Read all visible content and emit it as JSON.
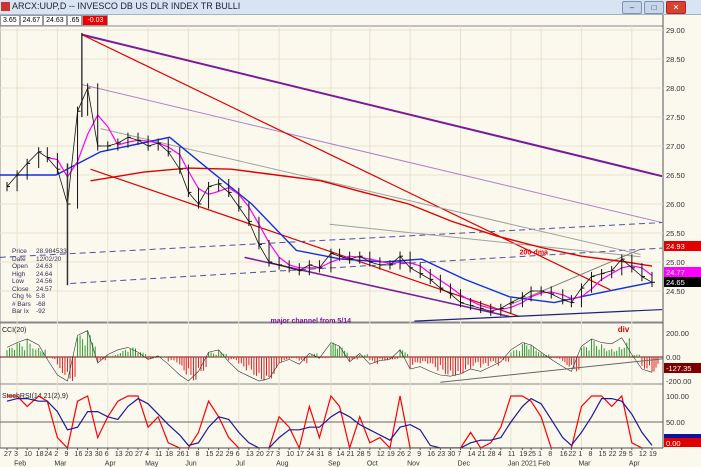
{
  "window": {
    "title": "ARCX:UUP,D -- INVESCO DB US DLR INDEX TR BULLI",
    "buttons": [
      "minimize",
      "maximize",
      "close"
    ]
  },
  "infobox": [
    "3.65",
    "24.67",
    "24.63",
    ".65",
    "-0.03"
  ],
  "readout": [
    {
      "label": "Price",
      "value": "28.984533"
    },
    {
      "label": "Date",
      "value": "12/02/20"
    },
    {
      "label": "Open",
      "value": "24.63"
    },
    {
      "label": "High",
      "value": "24.64"
    },
    {
      "label": "Low",
      "value": "24.56"
    },
    {
      "label": "Close",
      "value": "24.57"
    },
    {
      "label": "Chg %",
      "value": "5.8"
    },
    {
      "label": "# Bars",
      "value": "-68"
    },
    {
      "label": "Bar Ix",
      "value": "-92"
    }
  ],
  "chart_data": [
    {
      "type": "line",
      "panel": "price",
      "ylim": [
        24.0,
        29.0
      ],
      "yticks": [
        "29.00",
        "28.50",
        "28.00",
        "27.50",
        "27.00",
        "26.50",
        "26.00",
        "25.50",
        "25.00",
        "24.50"
      ],
      "grid": true,
      "dates": [
        "2020-01-27",
        "2020-02-03",
        "2020-02-10",
        "2020-02-18",
        "2020-02-24",
        "2020-03-02",
        "2020-03-09",
        "2020-03-16",
        "2020-03-23",
        "2020-03-30",
        "2020-04-06",
        "2020-04-13",
        "2020-04-20",
        "2020-04-27",
        "2020-05-04",
        "2020-05-11",
        "2020-05-18",
        "2020-05-26",
        "2020-06-01",
        "2020-06-08",
        "2020-06-15",
        "2020-06-22",
        "2020-06-29",
        "2020-07-06",
        "2020-07-13",
        "2020-07-20",
        "2020-07-27",
        "2020-08-03",
        "2020-08-10",
        "2020-08-17",
        "2020-08-24",
        "2020-08-31",
        "2020-09-08",
        "2020-09-14",
        "2020-09-21",
        "2020-09-28",
        "2020-10-05",
        "2020-10-12",
        "2020-10-19",
        "2020-10-26",
        "2020-11-02",
        "2020-11-09",
        "2020-11-16",
        "2020-11-23",
        "2020-11-30",
        "2020-12-07",
        "2020-12-14",
        "2020-12-21",
        "2020-12-28",
        "2021-01-04",
        "2021-01-11",
        "2021-01-19",
        "2021-01-25",
        "2021-02-01",
        "2021-02-08",
        "2021-02-16",
        "2021-02-22",
        "2021-03-01",
        "2021-03-08",
        "2021-03-15",
        "2021-03-22",
        "2021-03-29",
        "2021-04-05",
        "2021-04-12",
        "2021-04-19"
      ],
      "close": [
        26.3,
        26.5,
        26.7,
        26.9,
        26.8,
        26.6,
        26.0,
        27.6,
        28.0,
        27.0,
        27.0,
        27.05,
        27.15,
        27.1,
        27.0,
        27.05,
        26.9,
        26.6,
        26.2,
        26.0,
        26.3,
        26.35,
        26.2,
        25.95,
        25.7,
        25.3,
        25.0,
        24.95,
        24.9,
        24.85,
        24.95,
        24.9,
        25.15,
        25.1,
        25.05,
        25.1,
        25.0,
        24.95,
        24.95,
        25.1,
        24.9,
        24.8,
        24.7,
        24.55,
        24.45,
        24.3,
        24.25,
        24.2,
        24.15,
        24.2,
        24.3,
        24.4,
        24.5,
        24.5,
        24.45,
        24.35,
        24.3,
        24.55,
        24.75,
        24.8,
        24.85,
        25.05,
        24.9,
        24.75,
        24.65
      ],
      "extremes": [
        {
          "date": "2020-03-19",
          "high": 28.95
        },
        {
          "date": "2020-03-09",
          "low": 24.6
        }
      ],
      "moving_averages": [
        {
          "name": "200-dma",
          "color": "#e00000",
          "last": "24.93",
          "points": [
            [
              "2020-03-25",
              26.4
            ],
            [
              "2020-05-01",
              26.55
            ],
            [
              "2020-06-01",
              26.62
            ],
            [
              "2020-07-01",
              26.6
            ],
            [
              "2020-08-01",
              26.5
            ],
            [
              "2020-09-01",
              26.4
            ],
            [
              "2020-10-01",
              26.2
            ],
            [
              "2020-11-01",
              26.0
            ],
            [
              "2020-12-01",
              25.7
            ],
            [
              "2021-01-01",
              25.45
            ],
            [
              "2021-02-01",
              25.25
            ],
            [
              "2021-03-01",
              25.1
            ],
            [
              "2021-04-01",
              25.0
            ],
            [
              "2021-04-19",
              24.93
            ]
          ]
        },
        {
          "color": "#1030e0",
          "last": "24.65",
          "points": [
            [
              "2020-01-22",
              26.5
            ],
            [
              "2020-03-01",
              26.5
            ],
            [
              "2020-04-01",
              26.9
            ],
            [
              "2020-05-19",
              27.15
            ],
            [
              "2020-06-15",
              26.6
            ],
            [
              "2020-07-15",
              26.0
            ],
            [
              "2020-08-15",
              25.2
            ],
            [
              "2020-09-15",
              25.05
            ],
            [
              "2020-10-15",
              25.0
            ],
            [
              "2020-11-10",
              25.05
            ],
            [
              "2020-12-10",
              24.7
            ],
            [
              "2021-01-10",
              24.4
            ],
            [
              "2021-02-10",
              24.3
            ],
            [
              "2021-03-10",
              24.45
            ],
            [
              "2021-04-19",
              24.65
            ]
          ]
        },
        {
          "color": "#ff00ff",
          "last": "24.77"
        }
      ],
      "trendlines": [
        {
          "color": "#7a1a9a",
          "width": 2,
          "from": [
            "2020-03-19",
            28.92
          ],
          "to": [
            "2021-04-26",
            26.48
          ]
        },
        {
          "color": "#b080c8",
          "width": 1,
          "from": [
            "2020-03-19",
            28.06
          ],
          "to": [
            "2021-04-26",
            25.68
          ]
        },
        {
          "color": "#e00000",
          "width": 1.2,
          "from": [
            "2020-03-19",
            28.92
          ],
          "to": [
            "2021-03-21",
            24.52
          ]
        },
        {
          "color": "#e00000",
          "width": 1.2,
          "from": [
            "2020-03-25",
            26.6
          ],
          "to": [
            "2021-01-17",
            24.06
          ]
        },
        {
          "color": "#7a1a9a",
          "width": 1.5,
          "from": [
            "2020-07-10",
            25.08
          ],
          "to": [
            "2021-01-10",
            24.06
          ]
        },
        {
          "color": "#5050a0",
          "width": 1,
          "dash": true,
          "from": [
            "2020-01-22",
            25.08
          ],
          "to": [
            "2021-04-26",
            25.68
          ]
        },
        {
          "color": "#5050a0",
          "width": 1,
          "dash": true,
          "from": [
            "2020-03-11",
            24.63
          ],
          "to": [
            "2021-04-26",
            25.24
          ]
        },
        {
          "color": "#a0a0a0",
          "width": 1,
          "from": [
            "2020-04-01",
            27.3
          ],
          "to": [
            "2021-04-11",
            25.13
          ]
        },
        {
          "color": "#a0a0a0",
          "width": 1,
          "from": [
            "2020-09-07",
            25.65
          ],
          "to": [
            "2021-04-11",
            25.09
          ]
        },
        {
          "color": "#808080",
          "width": 1,
          "from": [
            "2021-01-10",
            24.26
          ],
          "to": [
            "2021-04-11",
            25.22
          ]
        },
        {
          "color": "#202080",
          "width": 1.2,
          "from": [
            "2020-11-05",
            23.98
          ],
          "to": [
            "2021-04-26",
            24.18
          ]
        }
      ],
      "annotations": [
        {
          "text": "200-dma",
          "color": "#e00000",
          "date": "2021-01-17",
          "price": 25.13
        },
        {
          "text": "major channel from 5/14",
          "color": "#7a1a9a",
          "date": "2020-07-28",
          "price": 23.95
        }
      ]
    },
    {
      "type": "bar",
      "panel": "indicator",
      "title": "CCI(20)",
      "ylim": [
        -250,
        250
      ],
      "yticks": [
        "200.00",
        "0.00",
        "-200.00"
      ],
      "last": "-127.35",
      "values": [
        80,
        120,
        150,
        100,
        -20,
        -150,
        -200,
        180,
        220,
        -50,
        20,
        60,
        80,
        40,
        -20,
        10,
        -60,
        -150,
        -200,
        -120,
        40,
        60,
        -40,
        -120,
        -160,
        -200,
        -180,
        -50,
        -20,
        -60,
        30,
        -10,
        120,
        90,
        -40,
        30,
        -60,
        -30,
        -20,
        60,
        -100,
        -80,
        -120,
        -150,
        -160,
        -140,
        -100,
        -120,
        -80,
        -40,
        60,
        120,
        100,
        40,
        -20,
        -80,
        -120,
        90,
        150,
        120,
        110,
        160,
        20,
        -100,
        -127.35
      ],
      "annotations": [
        {
          "text": "div",
          "color": "#e00000",
          "date": "2021-03-29"
        }
      ]
    },
    {
      "type": "line",
      "panel": "indicator",
      "title": "StochRSI(14,21(2),9)",
      "ylim": [
        0,
        100
      ],
      "yticks": [
        "100.00",
        "50.00"
      ],
      "last": "0.00",
      "series": [
        {
          "color": "#ff0000",
          "values": [
            100,
            100,
            80,
            100,
            90,
            20,
            0,
            90,
            100,
            20,
            60,
            90,
            100,
            100,
            40,
            60,
            10,
            0,
            0,
            30,
            90,
            60,
            20,
            0,
            0,
            0,
            0,
            60,
            40,
            0,
            80,
            20,
            100,
            80,
            0,
            60,
            10,
            20,
            0,
            100,
            0,
            0,
            0,
            0,
            0,
            0,
            30,
            0,
            10,
            40,
            100,
            100,
            90,
            60,
            0,
            0,
            0,
            80,
            100,
            100,
            80,
            100,
            10,
            0,
            0
          ]
        },
        {
          "color": "#1a1a9a",
          "values": [
            90,
            95,
            95,
            90,
            90,
            70,
            35,
            40,
            70,
            70,
            60,
            55,
            80,
            95,
            85,
            65,
            45,
            25,
            5,
            10,
            40,
            60,
            55,
            30,
            10,
            0,
            0,
            20,
            35,
            35,
            40,
            40,
            60,
            70,
            60,
            45,
            35,
            25,
            15,
            40,
            45,
            35,
            5,
            0,
            0,
            0,
            10,
            15,
            15,
            20,
            50,
            80,
            95,
            85,
            55,
            20,
            5,
            30,
            60,
            95,
            95,
            90,
            65,
            30,
            5
          ]
        }
      ]
    }
  ],
  "xaxis": {
    "tick_labels": [
      "27",
      "3",
      "10",
      "18",
      "24",
      "2",
      "9",
      "16",
      "23",
      "30",
      "6",
      "13",
      "20",
      "27",
      "4",
      "11",
      "18",
      "26",
      "1",
      "8",
      "15",
      "22",
      "29",
      "6",
      "13",
      "20",
      "27",
      "3",
      "10",
      "17",
      "24",
      "31",
      "8",
      "14",
      "21",
      "28",
      "5",
      "12",
      "19",
      "26",
      "2",
      "9",
      "16",
      "23",
      "30",
      "7",
      "14",
      "21",
      "28",
      "4",
      "11",
      "19",
      "25",
      "1",
      "8",
      "16",
      "22",
      "1",
      "8",
      "15",
      "22",
      "29",
      "5",
      "12",
      "19"
    ],
    "months": [
      {
        "label": "Feb",
        "date": "2020-02-03"
      },
      {
        "label": "Mar",
        "date": "2020-03-02"
      },
      {
        "label": "Apr",
        "date": "2020-04-06"
      },
      {
        "label": "May",
        "date": "2020-05-04"
      },
      {
        "label": "Jun",
        "date": "2020-06-01"
      },
      {
        "label": "Jul",
        "date": "2020-07-06"
      },
      {
        "label": "Aug",
        "date": "2020-08-03"
      },
      {
        "label": "Sep",
        "date": "2020-09-08"
      },
      {
        "label": "Oct",
        "date": "2020-10-05"
      },
      {
        "label": "Nov",
        "date": "2020-11-02"
      },
      {
        "label": "Dec",
        "date": "2020-12-07"
      },
      {
        "label": "Jan 2021",
        "date": "2021-01-11"
      },
      {
        "label": "Feb",
        "date": "2021-02-01"
      },
      {
        "label": "Mar",
        "date": "2021-03-01"
      },
      {
        "label": "Apr",
        "date": "2021-04-05"
      }
    ]
  }
}
